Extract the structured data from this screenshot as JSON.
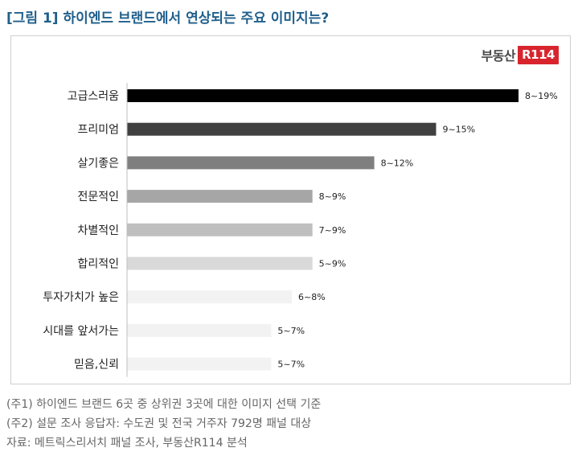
{
  "page": {
    "title": "[그림 1] 하이엔드 브랜드에서 연상되는 주요 이미지는?"
  },
  "logo": {
    "text": "부동산",
    "badge": "R114"
  },
  "chart_data": {
    "type": "bar",
    "orientation": "horizontal",
    "categories": [
      "고급스러움",
      "프리미엄",
      "살기좋은",
      "전문적인",
      "차별적인",
      "합리적인",
      "투자가치가 높은",
      "시대를 앞서가는",
      "믿음,신뢰"
    ],
    "values": [
      19,
      15,
      12,
      9,
      9,
      9,
      8,
      7,
      7
    ],
    "data_labels": [
      "8~19%",
      "9~15%",
      "8~12%",
      "8~9%",
      "7~9%",
      "5~9%",
      "6~8%",
      "5~7%",
      "5~7%"
    ],
    "colors": [
      "#000000",
      "#404040",
      "#7f7f7f",
      "#a6a6a6",
      "#bfbfbf",
      "#d9d9d9",
      "#f2f2f2",
      "#f2f2f2",
      "#f2f2f2"
    ],
    "xlim": [
      0,
      19
    ],
    "grid": false,
    "legend": "none"
  },
  "footnotes": [
    "(주1) 하이엔드 브랜드 6곳 중 상위권 3곳에 대한 이미지 선택 기준",
    "(주2) 설문 조사 응답자: 수도권 및 전국 거주자 792명 패널 대상",
    "자료: 메트릭스리서치 패널 조사, 부동산R114 분석"
  ]
}
